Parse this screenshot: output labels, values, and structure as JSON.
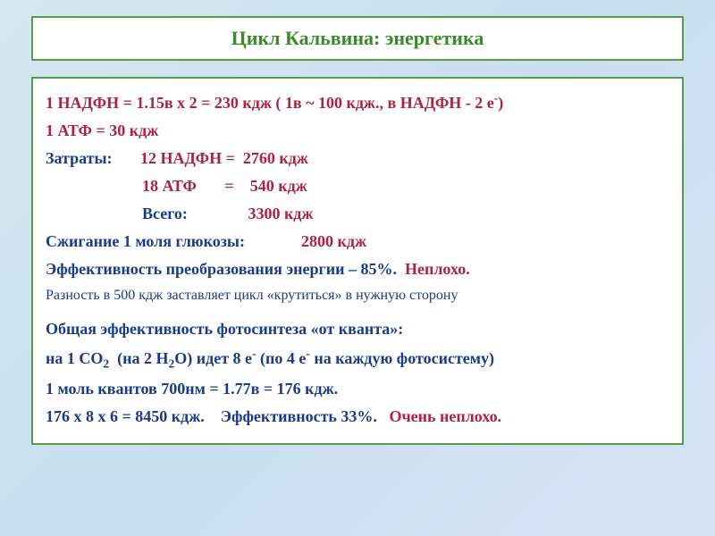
{
  "title": "Цикл Кальвина: энергетика",
  "colors": {
    "border": "#5a9b4a",
    "title_text": "#3a8a2a",
    "crimson": "#b02040",
    "navy": "#1a3a8a",
    "bg_white": "#ffffff"
  },
  "fontsize": {
    "title": 22,
    "body": 18
  },
  "lines": {
    "l1a": "1 НАДФН = 1.15в х 2 = 230 кдж ( 1в ~ 100 кдж., в НАДФН  - 2 е",
    "l1b": ")",
    "l2": "1 АТФ = 30 кдж",
    "l3a": "Затраты:",
    "l3b": "       12 НАДФН =  2760 кдж",
    "l4": "                        18 АТФ       =    540 кдж",
    "l5a": "                        Всего:",
    "l5b": "               3300 кдж",
    "l6a": "Сжигание 1 моля глюкозы:",
    "l6b": "              2800 кдж",
    "l7a": "Эффективность преобразования энергии – 85%.",
    "l7b": "  Неплохо.",
    "l8": "Разность в 500 кдж заставляет цикл «крутиться» в нужную сторону",
    "l9": "Общая эффективность фотосинтеза «от кванта»:",
    "l10a": "на 1 СО",
    "l10b": "  (на 2 Н",
    "l10c": "О) идет 8 е",
    "l10d": " (по 4 е",
    "l10e": " на каждую фотосистему)",
    "l11": "1 моль квантов 700нм = 1.77в = 176 кдж.",
    "l12a": "176 х 8 х 6 = 8450 кдж.",
    "l12b": "    Эффективность 33%.",
    "l12c": "   Очень неплохо."
  }
}
